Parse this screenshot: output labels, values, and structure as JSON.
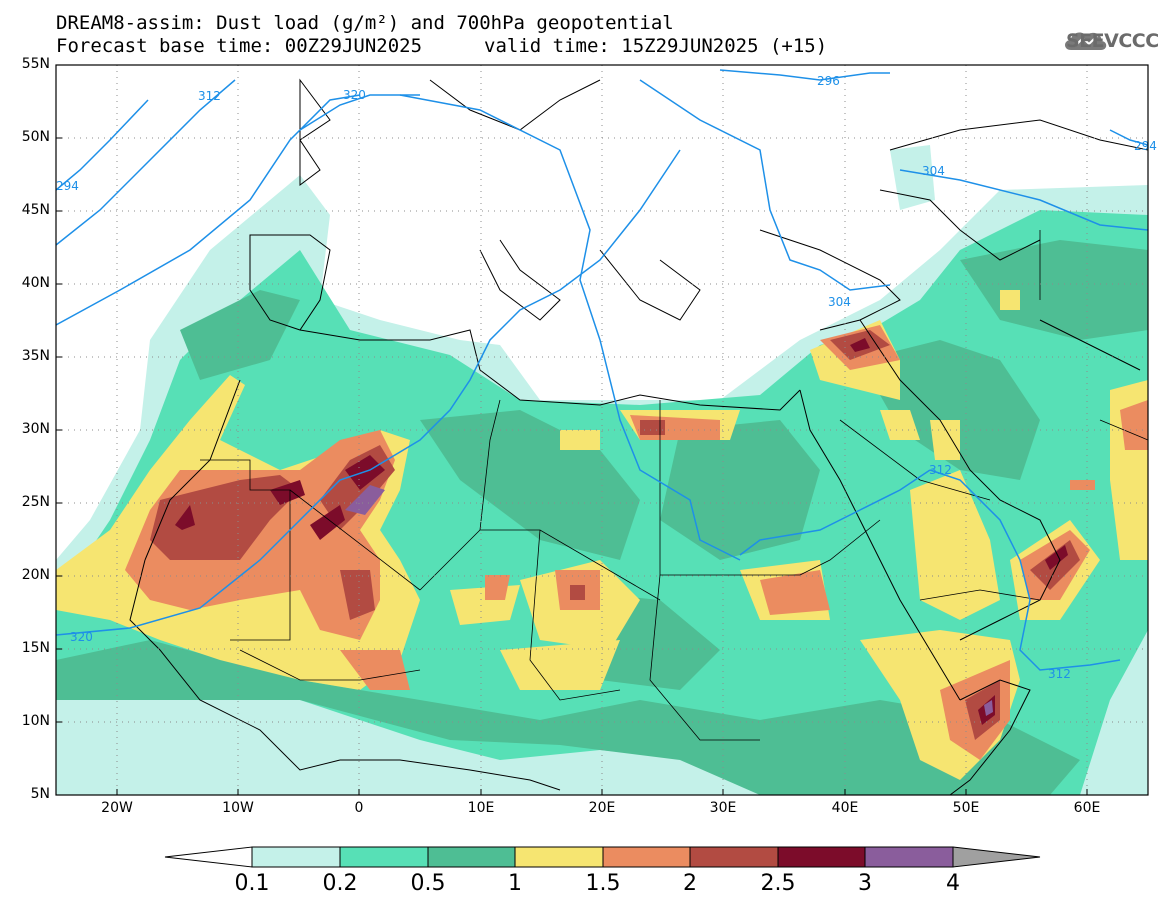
{
  "header": {
    "line1": "DREAM8-assim: Dust load (g/m²) and 700hPa geopotential",
    "line2": "Forecast base time: 00Z29JUN2025",
    "line2_valid": "valid time: 15Z29JUN2025 (+15)"
  },
  "logo": {
    "text": "SEEVCCC",
    "color": "#6b6b6b"
  },
  "map": {
    "lat_labels": [
      "55N",
      "50N",
      "45N",
      "40N",
      "35N",
      "30N",
      "25N",
      "20N",
      "15N",
      "10N",
      "5N"
    ],
    "lon_labels": [
      "20W",
      "10W",
      "0",
      "10E",
      "20E",
      "30E",
      "40E",
      "50E",
      "60E"
    ],
    "contour_labels": [
      "312",
      "320",
      "296",
      "304",
      "304",
      "312",
      "320",
      "312",
      "294",
      "294"
    ],
    "colors": {
      "contour": "#1e90e8",
      "land_border": "#000000",
      "grid": "#8c8c8c"
    }
  },
  "colorbar": {
    "ticks": [
      "0.1",
      "0.2",
      "0.5",
      "1",
      "1.5",
      "2",
      "2.5",
      "3",
      "4"
    ],
    "colors": [
      "#c4f1e9",
      "#57e0b6",
      "#4ebe94",
      "#f6e571",
      "#eb8c60",
      "#b24b42",
      "#7c0c2a",
      "#8a5d9c"
    ],
    "under_color": "#ffffff",
    "over_color": "#a0a0a0"
  }
}
